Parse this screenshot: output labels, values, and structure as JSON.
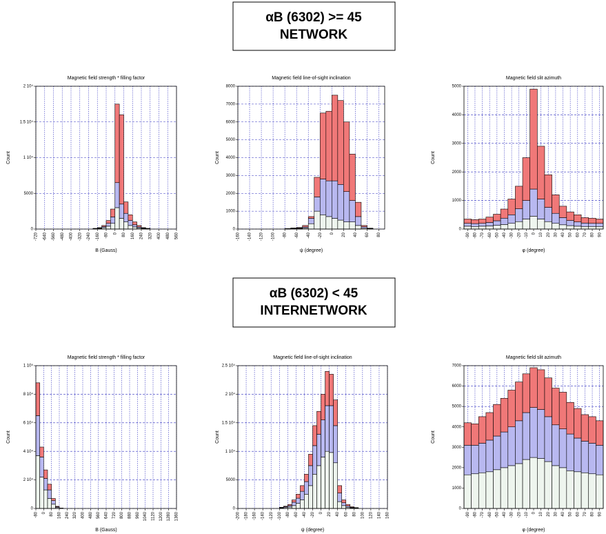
{
  "headings": [
    {
      "lines": [
        "αB (6302) >= 45",
        "NETWORK"
      ]
    },
    {
      "lines": [
        "αB (6302) < 45",
        "INTERNETWORK"
      ]
    }
  ],
  "chart_data": [
    {
      "type": "histogram",
      "title": "Magnetic field strength * filling factor",
      "x_label": "B (Gauss)",
      "y_label": "Count",
      "bins": [
        -720,
        -680,
        -640,
        -600,
        -560,
        -520,
        -480,
        -440,
        -400,
        -360,
        -320,
        -280,
        -240,
        -200,
        -160,
        -120,
        -80,
        -40,
        0,
        40,
        80,
        120,
        160,
        200,
        240,
        280,
        320,
        360,
        400,
        440,
        480,
        520,
        560
      ],
      "series": [
        {
          "color": "#eef5ee",
          "values": [
            0,
            0,
            0,
            0,
            0,
            0,
            0,
            0,
            0,
            0,
            0,
            0,
            0,
            40,
            80,
            200,
            400,
            800,
            3000,
            1500,
            1000,
            500,
            300,
            150,
            80,
            40,
            0,
            0,
            0,
            0,
            0,
            0
          ]
        },
        {
          "color": "#b8b8f0",
          "values": [
            0,
            0,
            0,
            0,
            0,
            0,
            0,
            0,
            0,
            0,
            0,
            0,
            0,
            30,
            60,
            150,
            400,
            900,
            3500,
            2000,
            1200,
            700,
            300,
            150,
            60,
            30,
            0,
            0,
            0,
            0,
            0,
            0
          ]
        },
        {
          "color": "#f07878",
          "values": [
            0,
            0,
            0,
            0,
            0,
            0,
            0,
            0,
            0,
            0,
            0,
            0,
            0,
            30,
            60,
            150,
            400,
            1100,
            11000,
            12500,
            1600,
            800,
            400,
            200,
            60,
            30,
            0,
            0,
            0,
            0,
            0,
            0
          ]
        }
      ],
      "xlim": [
        -720,
        560
      ],
      "xticks": [
        -720,
        -640,
        -560,
        -480,
        -400,
        -320,
        -240,
        -160,
        -80,
        0,
        80,
        160,
        240,
        320,
        400,
        480,
        560
      ],
      "ylim": [
        0,
        20000
      ],
      "yticks": [
        0,
        5000,
        {
          "value": 10000,
          "label": "1 10⁴"
        },
        {
          "value": 15000,
          "label": "1.5 10⁴"
        },
        {
          "value": 20000,
          "label": "2 10⁴"
        }
      ],
      "grid": true
    },
    {
      "type": "histogram",
      "title": "Magnetic field line-of-sight inclination",
      "x_label": "ψ (degree)",
      "y_label": "Count",
      "bins": [
        -160,
        -150,
        -140,
        -130,
        -120,
        -110,
        -100,
        -90,
        -80,
        -70,
        -60,
        -50,
        -40,
        -30,
        -20,
        -10,
        0,
        10,
        20,
        30,
        40,
        50,
        60,
        70,
        80,
        90
      ],
      "series": [
        {
          "color": "#eef5ee",
          "values": [
            0,
            0,
            0,
            0,
            0,
            0,
            0,
            0,
            10,
            20,
            30,
            60,
            300,
            1000,
            800,
            700,
            600,
            500,
            400,
            400,
            200,
            50,
            20,
            0,
            0
          ]
        },
        {
          "color": "#b8b8f0",
          "values": [
            0,
            0,
            0,
            0,
            0,
            0,
            0,
            0,
            10,
            20,
            30,
            60,
            300,
            800,
            2000,
            2000,
            2100,
            2000,
            1700,
            1200,
            500,
            80,
            20,
            0,
            0
          ]
        },
        {
          "color": "#f07878",
          "values": [
            0,
            0,
            0,
            0,
            0,
            0,
            0,
            0,
            10,
            20,
            30,
            80,
            100,
            1100,
            3700,
            3900,
            4800,
            4700,
            3900,
            2600,
            800,
            70,
            10,
            0,
            0
          ]
        }
      ],
      "xlim": [
        -160,
        90
      ],
      "xticks": [
        -160,
        -140,
        -120,
        -100,
        -80,
        -60,
        -40,
        -20,
        0,
        20,
        40,
        60,
        80
      ],
      "ylim": [
        0,
        8000
      ],
      "yticks": [
        0,
        1000,
        2000,
        3000,
        4000,
        5000,
        6000,
        7000,
        8000
      ],
      "grid": true
    },
    {
      "type": "histogram",
      "title": "Magnetic field slit azimuth",
      "x_label": "φ (degree)",
      "y_label": "Count",
      "bins": [
        -95,
        -85,
        -75,
        -65,
        -55,
        -45,
        -35,
        -25,
        -15,
        -5,
        5,
        15,
        25,
        35,
        45,
        55,
        65,
        75,
        85,
        95
      ],
      "series": [
        {
          "color": "#eef5ee",
          "values": [
            100,
            90,
            100,
            110,
            130,
            160,
            200,
            260,
            350,
            450,
            350,
            260,
            200,
            150,
            120,
            100,
            90,
            90,
            90
          ]
        },
        {
          "color": "#b8b8f0",
          "values": [
            100,
            100,
            100,
            120,
            160,
            220,
            300,
            450,
            650,
            950,
            700,
            500,
            350,
            250,
            180,
            150,
            120,
            110,
            110
          ]
        },
        {
          "color": "#f07878",
          "values": [
            150,
            140,
            150,
            190,
            230,
            320,
            550,
            790,
            1500,
            3500,
            1850,
            1140,
            650,
            400,
            300,
            250,
            190,
            180,
            150
          ]
        }
      ],
      "xlim": [
        -95,
        95
      ],
      "xticks": [
        -90,
        -80,
        -70,
        -60,
        -50,
        -40,
        -30,
        -20,
        -10,
        0,
        10,
        20,
        30,
        40,
        50,
        60,
        70,
        80,
        90
      ],
      "ylim": [
        0,
        5000
      ],
      "yticks": [
        0,
        1000,
        2000,
        3000,
        4000,
        5000
      ],
      "grid": true
    },
    {
      "type": "histogram",
      "title": "Magnetic field strength * filling factor",
      "x_label": "B (Gauss)",
      "y_label": "Count",
      "bins": [
        -80,
        -40,
        0,
        40,
        80,
        120,
        160,
        200,
        240,
        280,
        320,
        360,
        400,
        440,
        480,
        520,
        560,
        600,
        640,
        680,
        720,
        760,
        800,
        840,
        880,
        920,
        960,
        1000,
        1040,
        1080,
        1120,
        1160,
        1200,
        1240,
        1280,
        1320,
        1360
      ],
      "series": [
        {
          "color": "#eef5ee",
          "values": [
            37000,
            22000,
            13000,
            7000,
            3000,
            600,
            100,
            0,
            0,
            0,
            0,
            0,
            0,
            0,
            0,
            0,
            0,
            0,
            0,
            0,
            0,
            0,
            0,
            0,
            0,
            0,
            0,
            0,
            0,
            0,
            0,
            0,
            0,
            0,
            0,
            0
          ]
        },
        {
          "color": "#b8b8f0",
          "values": [
            28000,
            14000,
            8000,
            6000,
            2500,
            500,
            100,
            0,
            0,
            0,
            0,
            0,
            0,
            0,
            0,
            0,
            0,
            0,
            0,
            0,
            0,
            0,
            0,
            0,
            0,
            0,
            0,
            0,
            0,
            0,
            0,
            0,
            0,
            0,
            0,
            0
          ]
        },
        {
          "color": "#f07878",
          "values": [
            23000,
            7000,
            6000,
            4000,
            1500,
            400,
            100,
            0,
            0,
            0,
            0,
            0,
            0,
            0,
            0,
            0,
            0,
            0,
            0,
            0,
            0,
            0,
            0,
            0,
            0,
            0,
            0,
            0,
            0,
            0,
            0,
            0,
            0,
            0,
            0,
            0
          ]
        }
      ],
      "xlim": [
        -80,
        1360
      ],
      "xticks": [
        -80,
        0,
        80,
        160,
        240,
        320,
        400,
        480,
        560,
        640,
        720,
        800,
        880,
        960,
        1040,
        1120,
        1200,
        1280,
        1360
      ],
      "ylim": [
        0,
        100000
      ],
      "yticks": [
        0,
        {
          "value": 20000,
          "label": "2 10⁴"
        },
        {
          "value": 40000,
          "label": "4 10⁴"
        },
        {
          "value": 60000,
          "label": "6 10⁴"
        },
        {
          "value": 80000,
          "label": "8 10⁴"
        },
        {
          "value": 100000,
          "label": "1 10⁵"
        }
      ],
      "grid": true
    },
    {
      "type": "histogram",
      "title": "Magnetic field line-of-sight inclination",
      "x_label": "ψ (degree)",
      "y_label": "Count",
      "bins": [
        -200,
        -190,
        -180,
        -170,
        -160,
        -150,
        -140,
        -130,
        -120,
        -110,
        -100,
        -90,
        -80,
        -70,
        -60,
        -50,
        -40,
        -30,
        -20,
        -10,
        0,
        10,
        20,
        30,
        40,
        50,
        60,
        70,
        80,
        90,
        100,
        110,
        120,
        130,
        140,
        150,
        160
      ],
      "series": [
        {
          "color": "#eef5ee",
          "values": [
            0,
            0,
            0,
            0,
            0,
            0,
            0,
            0,
            0,
            0,
            80,
            150,
            250,
            500,
            900,
            1500,
            2500,
            4000,
            6000,
            7500,
            9000,
            10000,
            9800,
            8000,
            1200,
            500,
            200,
            100,
            50,
            0,
            0,
            0,
            0,
            0,
            0,
            0
          ]
        },
        {
          "color": "#b8b8f0",
          "values": [
            0,
            0,
            0,
            0,
            0,
            0,
            0,
            0,
            0,
            0,
            60,
            150,
            250,
            600,
            900,
            1500,
            2200,
            3500,
            5000,
            5500,
            6500,
            8000,
            8200,
            6500,
            1500,
            500,
            250,
            100,
            50,
            0,
            0,
            0,
            0,
            0,
            0,
            0
          ]
        },
        {
          "color": "#f07878",
          "values": [
            0,
            0,
            0,
            0,
            0,
            0,
            0,
            0,
            0,
            0,
            60,
            100,
            200,
            400,
            700,
            1000,
            1300,
            2000,
            3500,
            4000,
            4500,
            6000,
            5500,
            4500,
            1300,
            500,
            250,
            100,
            50,
            0,
            0,
            0,
            0,
            0,
            0,
            0
          ]
        }
      ],
      "xlim": [
        -200,
        160
      ],
      "xticks": [
        -200,
        -180,
        -160,
        -140,
        -120,
        -100,
        -80,
        -60,
        -40,
        -20,
        0,
        20,
        40,
        60,
        80,
        100,
        120,
        140,
        160
      ],
      "ylim": [
        0,
        25000
      ],
      "yticks": [
        0,
        5000,
        {
          "value": 10000,
          "label": "1 10⁴"
        },
        {
          "value": 15000,
          "label": "1.5 10⁴"
        },
        {
          "value": 20000,
          "label": "2 10⁴"
        },
        {
          "value": 25000,
          "label": "2.5 10⁴"
        }
      ],
      "grid": true
    },
    {
      "type": "histogram",
      "title": "Magnetic field slit azimuth",
      "x_label": "φ (degree)",
      "y_label": "Count",
      "bins": [
        -95,
        -85,
        -75,
        -65,
        -55,
        -45,
        -35,
        -25,
        -15,
        -5,
        5,
        15,
        25,
        35,
        45,
        55,
        65,
        75,
        85,
        95
      ],
      "series": [
        {
          "color": "#eef5ee",
          "values": [
            1650,
            1700,
            1750,
            1800,
            1900,
            2000,
            2100,
            2200,
            2400,
            2500,
            2450,
            2300,
            2100,
            2000,
            1850,
            1800,
            1750,
            1700,
            1650
          ]
        },
        {
          "color": "#b8b8f0",
          "values": [
            1450,
            1400,
            1450,
            1550,
            1650,
            1750,
            1900,
            2100,
            2300,
            2450,
            2400,
            2200,
            2000,
            1900,
            1800,
            1650,
            1550,
            1500,
            1450
          ]
        },
        {
          "color": "#f07878",
          "values": [
            1100,
            1050,
            1300,
            1350,
            1550,
            1650,
            1800,
            1900,
            1900,
            1950,
            1950,
            1900,
            1800,
            1800,
            1550,
            1450,
            1300,
            1300,
            1200
          ]
        }
      ],
      "xlim": [
        -95,
        95
      ],
      "xticks": [
        -90,
        -80,
        -70,
        -60,
        -50,
        -40,
        -30,
        -20,
        -10,
        0,
        10,
        20,
        30,
        40,
        50,
        60,
        70,
        80,
        90
      ],
      "ylim": [
        0,
        7000
      ],
      "yticks": [
        0,
        1000,
        2000,
        3000,
        4000,
        5000,
        6000,
        7000
      ],
      "grid": true
    }
  ]
}
